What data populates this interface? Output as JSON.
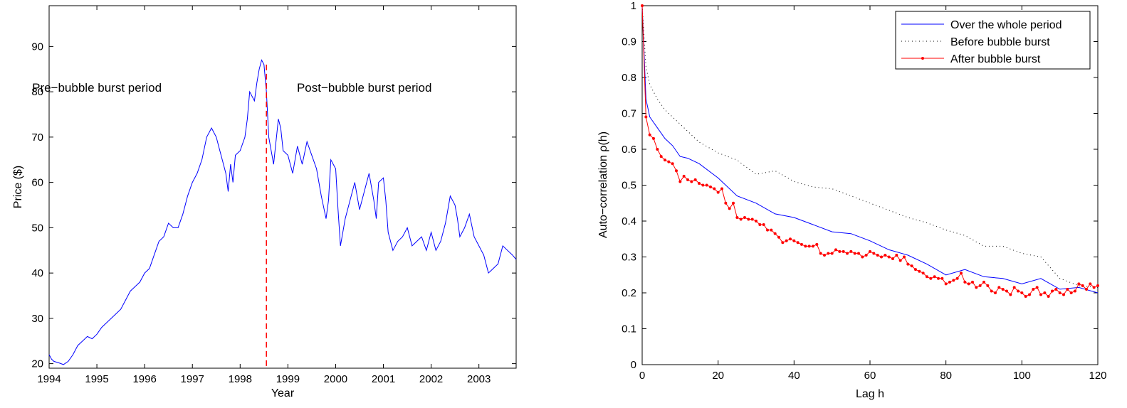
{
  "chart_data": [
    {
      "type": "line",
      "title": "",
      "xlabel": "Year",
      "ylabel": "Price ($)",
      "xlim": [
        1994.0,
        2003.78
      ],
      "ylim": [
        19,
        99
      ],
      "xticks": [
        1994,
        1995,
        1996,
        1997,
        1998,
        1999,
        2000,
        2001,
        2002,
        2003
      ],
      "yticks": [
        20,
        30,
        40,
        50,
        60,
        70,
        80,
        90
      ],
      "grid": false,
      "colors": {
        "series": "#0000ff",
        "marker": "#ff0000"
      },
      "series": [
        {
          "x": [
            1994.0,
            1994.05,
            1994.1,
            1994.2,
            1994.3,
            1994.4,
            1994.5,
            1994.6,
            1994.7,
            1994.8,
            1994.9,
            1995.0,
            1995.1,
            1995.2,
            1995.3,
            1995.4,
            1995.5,
            1995.6,
            1995.7,
            1995.8,
            1995.9,
            1996.0,
            1996.1,
            1996.2,
            1996.3,
            1996.4,
            1996.5,
            1996.6,
            1996.7,
            1996.8,
            1996.9,
            1997.0,
            1997.1,
            1997.2,
            1997.3,
            1997.4,
            1997.5,
            1997.55,
            1997.6,
            1997.7,
            1997.75,
            1997.8,
            1997.85,
            1997.9,
            1998.0,
            1998.1,
            1998.15,
            1998.2,
            1998.3,
            1998.35,
            1998.4,
            1998.45,
            1998.5,
            1998.55,
            1998.6,
            1998.7,
            1998.8,
            1998.85,
            1998.9,
            1999.0,
            1999.1,
            1999.2,
            1999.3,
            1999.4,
            1999.5,
            1999.6,
            1999.7,
            1999.8,
            1999.85,
            1999.9,
            2000.0,
            2000.05,
            2000.1,
            2000.2,
            2000.3,
            2000.4,
            2000.5,
            2000.6,
            2000.7,
            2000.8,
            2000.85,
            2000.9,
            2001.0,
            2001.05,
            2001.1,
            2001.2,
            2001.3,
            2001.4,
            2001.5,
            2001.6,
            2001.7,
            2001.8,
            2001.9,
            2002.0,
            2002.1,
            2002.2,
            2002.3,
            2002.35,
            2002.4,
            2002.5,
            2002.55,
            2002.6,
            2002.7,
            2002.8,
            2002.9,
            2003.0,
            2003.05,
            2003.1,
            2003.2,
            2003.3,
            2003.4,
            2003.5,
            2003.6,
            2003.7,
            2003.78
          ],
          "values": [
            22,
            21,
            20.5,
            20.2,
            19.8,
            20.5,
            22,
            24,
            25,
            26,
            25.5,
            26.5,
            28,
            29,
            30,
            31,
            32,
            34,
            36,
            37,
            38,
            40,
            41,
            44,
            47,
            48,
            51,
            50,
            50,
            53,
            57,
            60,
            62,
            65,
            70,
            72,
            70,
            68,
            66,
            62,
            58,
            64,
            60,
            66,
            67,
            70,
            74,
            80,
            78,
            82,
            85,
            87,
            86,
            80,
            70,
            64,
            74,
            72,
            67,
            66,
            62,
            68,
            64,
            69,
            66,
            63,
            57,
            52,
            56,
            65,
            63,
            54,
            46,
            52,
            56,
            60,
            54,
            58,
            62,
            56,
            52,
            60,
            61,
            56,
            49,
            45,
            47,
            48,
            50,
            46,
            47,
            48,
            45,
            49,
            45,
            47,
            51,
            54,
            57,
            55,
            52,
            48,
            50,
            53,
            48,
            46,
            45,
            44,
            40,
            41,
            42,
            46,
            45,
            44,
            43
          ]
        }
      ],
      "annotations": [
        {
          "text": "Pre−bubble burst period",
          "x": 1995.0,
          "y": 80
        },
        {
          "text": "Post−bubble burst period",
          "x": 2000.6,
          "y": 80
        },
        {
          "text": "",
          "type": "vline",
          "x": 1998.55,
          "style": "dashed"
        }
      ]
    },
    {
      "type": "line",
      "title": "",
      "xlabel": "Lag h",
      "ylabel": "Auto−correlation ρ(h)",
      "xlim": [
        0,
        120
      ],
      "ylim": [
        0,
        1
      ],
      "xticks": [
        0,
        20,
        40,
        60,
        80,
        100,
        120
      ],
      "yticks": [
        0,
        0.1,
        0.2,
        0.3,
        0.4,
        0.5,
        0.6,
        0.7,
        0.8,
        0.9,
        1
      ],
      "grid": false,
      "legend": "top-right",
      "series": [
        {
          "name": "Over the whole period",
          "color": "#0000ff",
          "style": "solid",
          "x": [
            0,
            1,
            2,
            4,
            6,
            8,
            10,
            12,
            15,
            20,
            25,
            30,
            35,
            40,
            45,
            50,
            55,
            60,
            65,
            70,
            75,
            80,
            85,
            90,
            95,
            100,
            105,
            110,
            115,
            120
          ],
          "values": [
            1,
            0.74,
            0.69,
            0.66,
            0.63,
            0.61,
            0.58,
            0.575,
            0.56,
            0.52,
            0.47,
            0.45,
            0.42,
            0.41,
            0.39,
            0.37,
            0.365,
            0.345,
            0.32,
            0.305,
            0.28,
            0.25,
            0.265,
            0.245,
            0.24,
            0.225,
            0.24,
            0.21,
            0.215,
            0.2
          ]
        },
        {
          "name": "Before bubble burst",
          "color": "#000000",
          "style": "dotted",
          "x": [
            0,
            1,
            2,
            4,
            6,
            8,
            10,
            12,
            15,
            20,
            25,
            30,
            35,
            40,
            45,
            50,
            55,
            60,
            65,
            70,
            75,
            80,
            85,
            90,
            95,
            100,
            105,
            110,
            115,
            120
          ],
          "values": [
            1,
            0.83,
            0.78,
            0.74,
            0.71,
            0.69,
            0.67,
            0.65,
            0.62,
            0.59,
            0.57,
            0.53,
            0.54,
            0.51,
            0.495,
            0.49,
            0.47,
            0.45,
            0.43,
            0.41,
            0.395,
            0.375,
            0.36,
            0.33,
            0.33,
            0.31,
            0.3,
            0.24,
            0.22,
            0.215
          ]
        },
        {
          "name": "After bubble burst",
          "color": "#ff0000",
          "style": "solid-marker",
          "x": [
            0,
            1,
            2,
            3,
            4,
            5,
            6,
            7,
            8,
            9,
            10,
            11,
            12,
            13,
            14,
            15,
            16,
            17,
            18,
            19,
            20,
            21,
            22,
            23,
            24,
            25,
            26,
            27,
            28,
            29,
            30,
            31,
            32,
            33,
            34,
            35,
            36,
            37,
            38,
            39,
            40,
            41,
            42,
            43,
            44,
            45,
            46,
            47,
            48,
            49,
            50,
            51,
            52,
            53,
            54,
            55,
            56,
            57,
            58,
            59,
            60,
            61,
            62,
            63,
            64,
            65,
            66,
            67,
            68,
            69,
            70,
            71,
            72,
            73,
            74,
            75,
            76,
            77,
            78,
            79,
            80,
            81,
            82,
            83,
            84,
            85,
            86,
            87,
            88,
            89,
            90,
            91,
            92,
            93,
            94,
            95,
            96,
            97,
            98,
            99,
            100,
            101,
            102,
            103,
            104,
            105,
            106,
            107,
            108,
            109,
            110,
            111,
            112,
            113,
            114,
            115,
            116,
            117,
            118,
            119,
            120
          ],
          "values": [
            1,
            0.69,
            0.64,
            0.63,
            0.6,
            0.58,
            0.57,
            0.565,
            0.56,
            0.54,
            0.51,
            0.525,
            0.515,
            0.51,
            0.515,
            0.505,
            0.5,
            0.5,
            0.495,
            0.49,
            0.48,
            0.49,
            0.45,
            0.435,
            0.45,
            0.41,
            0.405,
            0.41,
            0.405,
            0.405,
            0.4,
            0.39,
            0.39,
            0.375,
            0.375,
            0.365,
            0.355,
            0.34,
            0.345,
            0.35,
            0.345,
            0.34,
            0.335,
            0.33,
            0.33,
            0.33,
            0.335,
            0.31,
            0.305,
            0.31,
            0.31,
            0.32,
            0.315,
            0.315,
            0.31,
            0.315,
            0.31,
            0.31,
            0.3,
            0.305,
            0.315,
            0.31,
            0.305,
            0.3,
            0.305,
            0.3,
            0.295,
            0.305,
            0.29,
            0.3,
            0.28,
            0.275,
            0.265,
            0.26,
            0.255,
            0.245,
            0.24,
            0.245,
            0.24,
            0.24,
            0.225,
            0.23,
            0.235,
            0.24,
            0.255,
            0.23,
            0.225,
            0.23,
            0.215,
            0.22,
            0.23,
            0.22,
            0.205,
            0.2,
            0.215,
            0.21,
            0.205,
            0.195,
            0.215,
            0.205,
            0.2,
            0.19,
            0.195,
            0.21,
            0.215,
            0.195,
            0.2,
            0.19,
            0.205,
            0.21,
            0.2,
            0.195,
            0.21,
            0.2,
            0.205,
            0.225,
            0.22,
            0.21,
            0.225,
            0.215,
            0.22
          ]
        }
      ]
    }
  ]
}
